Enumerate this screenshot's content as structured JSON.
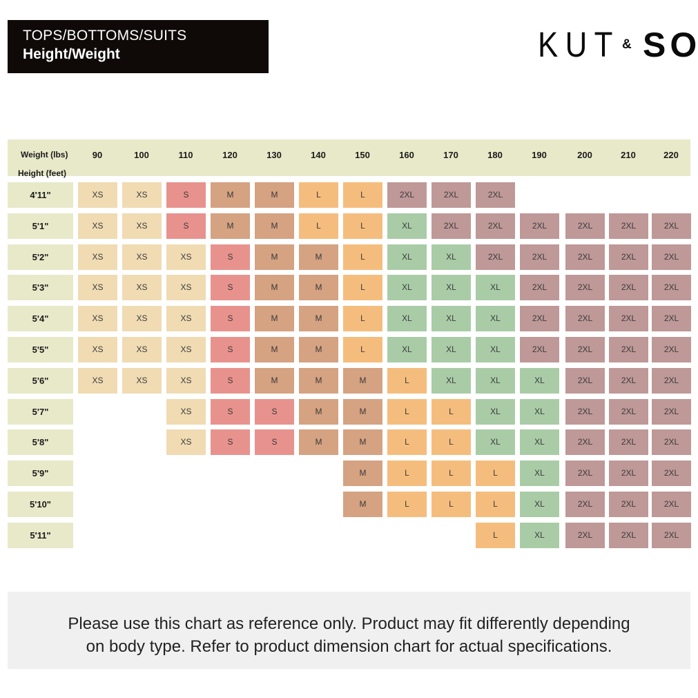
{
  "header": {
    "line1": "TOPS/BOTTOMS/SUITS",
    "line2": "Height/Weight"
  },
  "logo": {
    "left": "KUT",
    "amp": "&",
    "right": "SO"
  },
  "colors": {
    "XS": "#f0dbb3",
    "S": "#e8928e",
    "M": "#d5a282",
    "L": "#f5bd7d",
    "XL": "#a9cca7",
    "2XL": "#bf9898",
    "axis_band": "#e8e9c9",
    "title_bg": "#0f0a08",
    "note_bg": "#f0f0f1"
  },
  "chart_data": {
    "type": "table",
    "title": "Height/Weight",
    "xlabel": "Weight (lbs)",
    "ylabel": "Height (feet)",
    "weights": [
      "90",
      "100",
      "110",
      "120",
      "130",
      "140",
      "150",
      "160",
      "170",
      "180",
      "190",
      "200",
      "210",
      "220"
    ],
    "heights": [
      "4'11\"",
      "5'1\"",
      "5'2\"",
      "5'3\"",
      "5'4\"",
      "5'5\"",
      "5'6\"",
      "5'7\"",
      "5'8\"",
      "5'9\"",
      "5'10\"",
      "5'11\""
    ],
    "sizes": [
      [
        "XS",
        "XS",
        "S",
        "M",
        "M",
        "L",
        "L",
        "2XL",
        "2XL",
        "2XL",
        null,
        null,
        null,
        null
      ],
      [
        "XS",
        "XS",
        "S",
        "M",
        "M",
        "L",
        "L",
        "XL",
        "2XL",
        "2XL",
        "2XL",
        "2XL",
        "2XL",
        "2XL"
      ],
      [
        "XS",
        "XS",
        "XS",
        "S",
        "M",
        "M",
        "L",
        "XL",
        "XL",
        "2XL",
        "2XL",
        "2XL",
        "2XL",
        "2XL"
      ],
      [
        "XS",
        "XS",
        "XS",
        "S",
        "M",
        "M",
        "L",
        "XL",
        "XL",
        "XL",
        "2XL",
        "2XL",
        "2XL",
        "2XL"
      ],
      [
        "XS",
        "XS",
        "XS",
        "S",
        "M",
        "M",
        "L",
        "XL",
        "XL",
        "XL",
        "2XL",
        "2XL",
        "2XL",
        "2XL"
      ],
      [
        "XS",
        "XS",
        "XS",
        "S",
        "M",
        "M",
        "L",
        "XL",
        "XL",
        "XL",
        "2XL",
        "2XL",
        "2XL",
        "2XL"
      ],
      [
        "XS",
        "XS",
        "XS",
        "S",
        "M",
        "M",
        "M",
        "L",
        "XL",
        "XL",
        "XL",
        "2XL",
        "2XL",
        "2XL"
      ],
      [
        null,
        null,
        "XS",
        "S",
        "S",
        "M",
        "M",
        "L",
        "L",
        "XL",
        "XL",
        "2XL",
        "2XL",
        "2XL"
      ],
      [
        null,
        null,
        "XS",
        "S",
        "S",
        "M",
        "M",
        "L",
        "L",
        "XL",
        "XL",
        "2XL",
        "2XL",
        "2XL"
      ],
      [
        null,
        null,
        null,
        null,
        null,
        null,
        "M",
        "L",
        "L",
        "L",
        "XL",
        "2XL",
        "2XL",
        "2XL"
      ],
      [
        null,
        null,
        null,
        null,
        null,
        null,
        "M",
        "L",
        "L",
        "L",
        "XL",
        "2XL",
        "2XL",
        "2XL"
      ],
      [
        null,
        null,
        null,
        null,
        null,
        null,
        null,
        null,
        null,
        "L",
        "XL",
        "2XL",
        "2XL",
        "2XL"
      ]
    ]
  },
  "note": {
    "line1": "Please use this chart as reference only. Product may fit differently depending",
    "line2": "on body type. Refer to product dimension chart for actual specifications."
  }
}
